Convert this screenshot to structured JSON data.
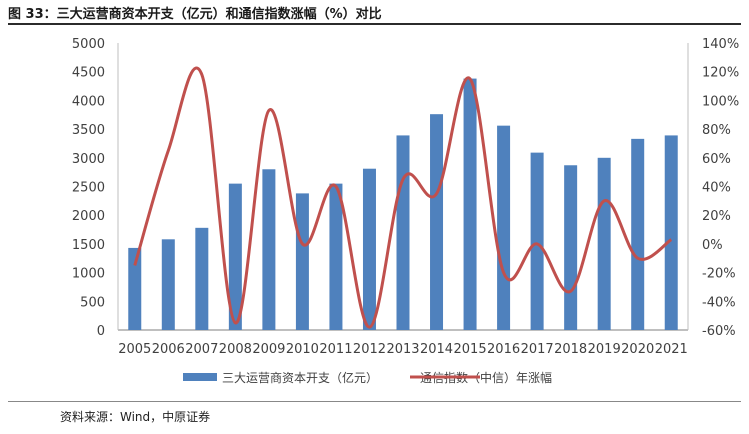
{
  "header": {
    "title": "图 33：三大运营商资本开支（亿元）和通信指数涨幅（%）对比"
  },
  "footer": {
    "source": "资料来源：Wind，中原证券"
  },
  "colors": {
    "bar": "#4f81bd",
    "line": "#c0504d"
  },
  "chart_data": {
    "type": "bar",
    "categories": [
      "2005",
      "2006",
      "2007",
      "2008",
      "2009",
      "2010",
      "2011",
      "2012",
      "2013",
      "2014",
      "2015",
      "2016",
      "2017",
      "2018",
      "2019",
      "2020",
      "2021"
    ],
    "series": [
      {
        "name": "三大运营商资本开支（亿元）",
        "type": "bar",
        "axis": "left",
        "values": [
          1430,
          1580,
          1780,
          2550,
          2800,
          2380,
          2550,
          2810,
          3390,
          3760,
          4380,
          3560,
          3090,
          2870,
          3000,
          3330,
          3390
        ]
      },
      {
        "name": "通信指数（中信）年涨幅",
        "type": "line",
        "axis": "right",
        "values": [
          -15,
          65,
          118,
          -55,
          93,
          0,
          40,
          -58,
          45,
          35,
          115,
          -20,
          0,
          -33,
          30,
          -10,
          3
        ]
      }
    ],
    "y_left": {
      "min": 0,
      "max": 5000,
      "step": 500,
      "ticks": [
        "0",
        "500",
        "1000",
        "1500",
        "2000",
        "2500",
        "3000",
        "3500",
        "4000",
        "4500",
        "5000"
      ]
    },
    "y_right": {
      "min": -60,
      "max": 140,
      "step": 20,
      "ticks": [
        "-60%",
        "-40%",
        "-20%",
        "0%",
        "20%",
        "40%",
        "60%",
        "80%",
        "100%",
        "120%",
        "140%"
      ]
    },
    "grid": false,
    "legend_position": "bottom"
  }
}
